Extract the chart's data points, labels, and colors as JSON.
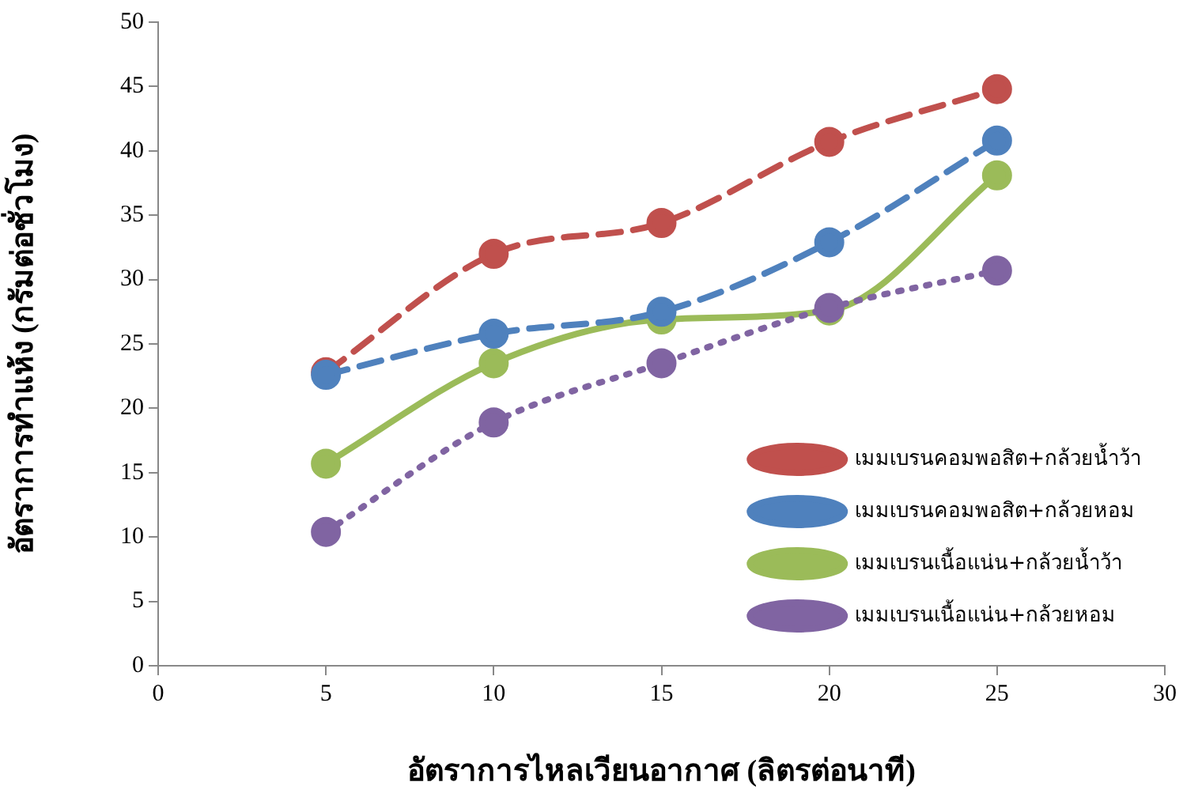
{
  "chart_data": {
    "type": "line",
    "xlabel": "อัตราการไหลเวียนอากาศ (ลิตรต่อนาที)",
    "ylabel": "อัตราการทำแห้ง (กรัมต่อชั่วโมง)",
    "x": [
      5,
      10,
      15,
      20,
      25
    ],
    "xlim": [
      0,
      30
    ],
    "xticks": [
      0,
      5,
      10,
      15,
      20,
      25,
      30
    ],
    "ylim": [
      0,
      50
    ],
    "yticks": [
      0,
      5,
      10,
      15,
      20,
      25,
      30,
      35,
      40,
      45,
      50
    ],
    "grid": false,
    "legend": "bottom right",
    "marker": "circle",
    "series": [
      {
        "name": "เมมเบรนคอมพอสิต+กล้วยน้ำว้า",
        "color": "#c0504d",
        "line_style": "dashed",
        "values": [
          22.8,
          32.0,
          34.4,
          40.7,
          44.8
        ]
      },
      {
        "name": "เมมเบรนคอมพอสิต+กล้วยหอม",
        "color": "#4f81bd",
        "line_style": "dashed",
        "values": [
          22.6,
          25.8,
          27.5,
          32.9,
          40.8
        ]
      },
      {
        "name": "เมมเบรนเนื้อแน่น+กล้วยน้ำว้า",
        "color": "#9bbb59",
        "line_style": "solid",
        "values": [
          15.7,
          23.5,
          26.9,
          27.6,
          38.1
        ]
      },
      {
        "name": "เมมเบรนเนื้อแน่น+กล้วยหอม",
        "color": "#8064a2",
        "line_style": "dotted",
        "values": [
          10.4,
          18.9,
          23.5,
          27.8,
          30.7
        ]
      }
    ]
  }
}
